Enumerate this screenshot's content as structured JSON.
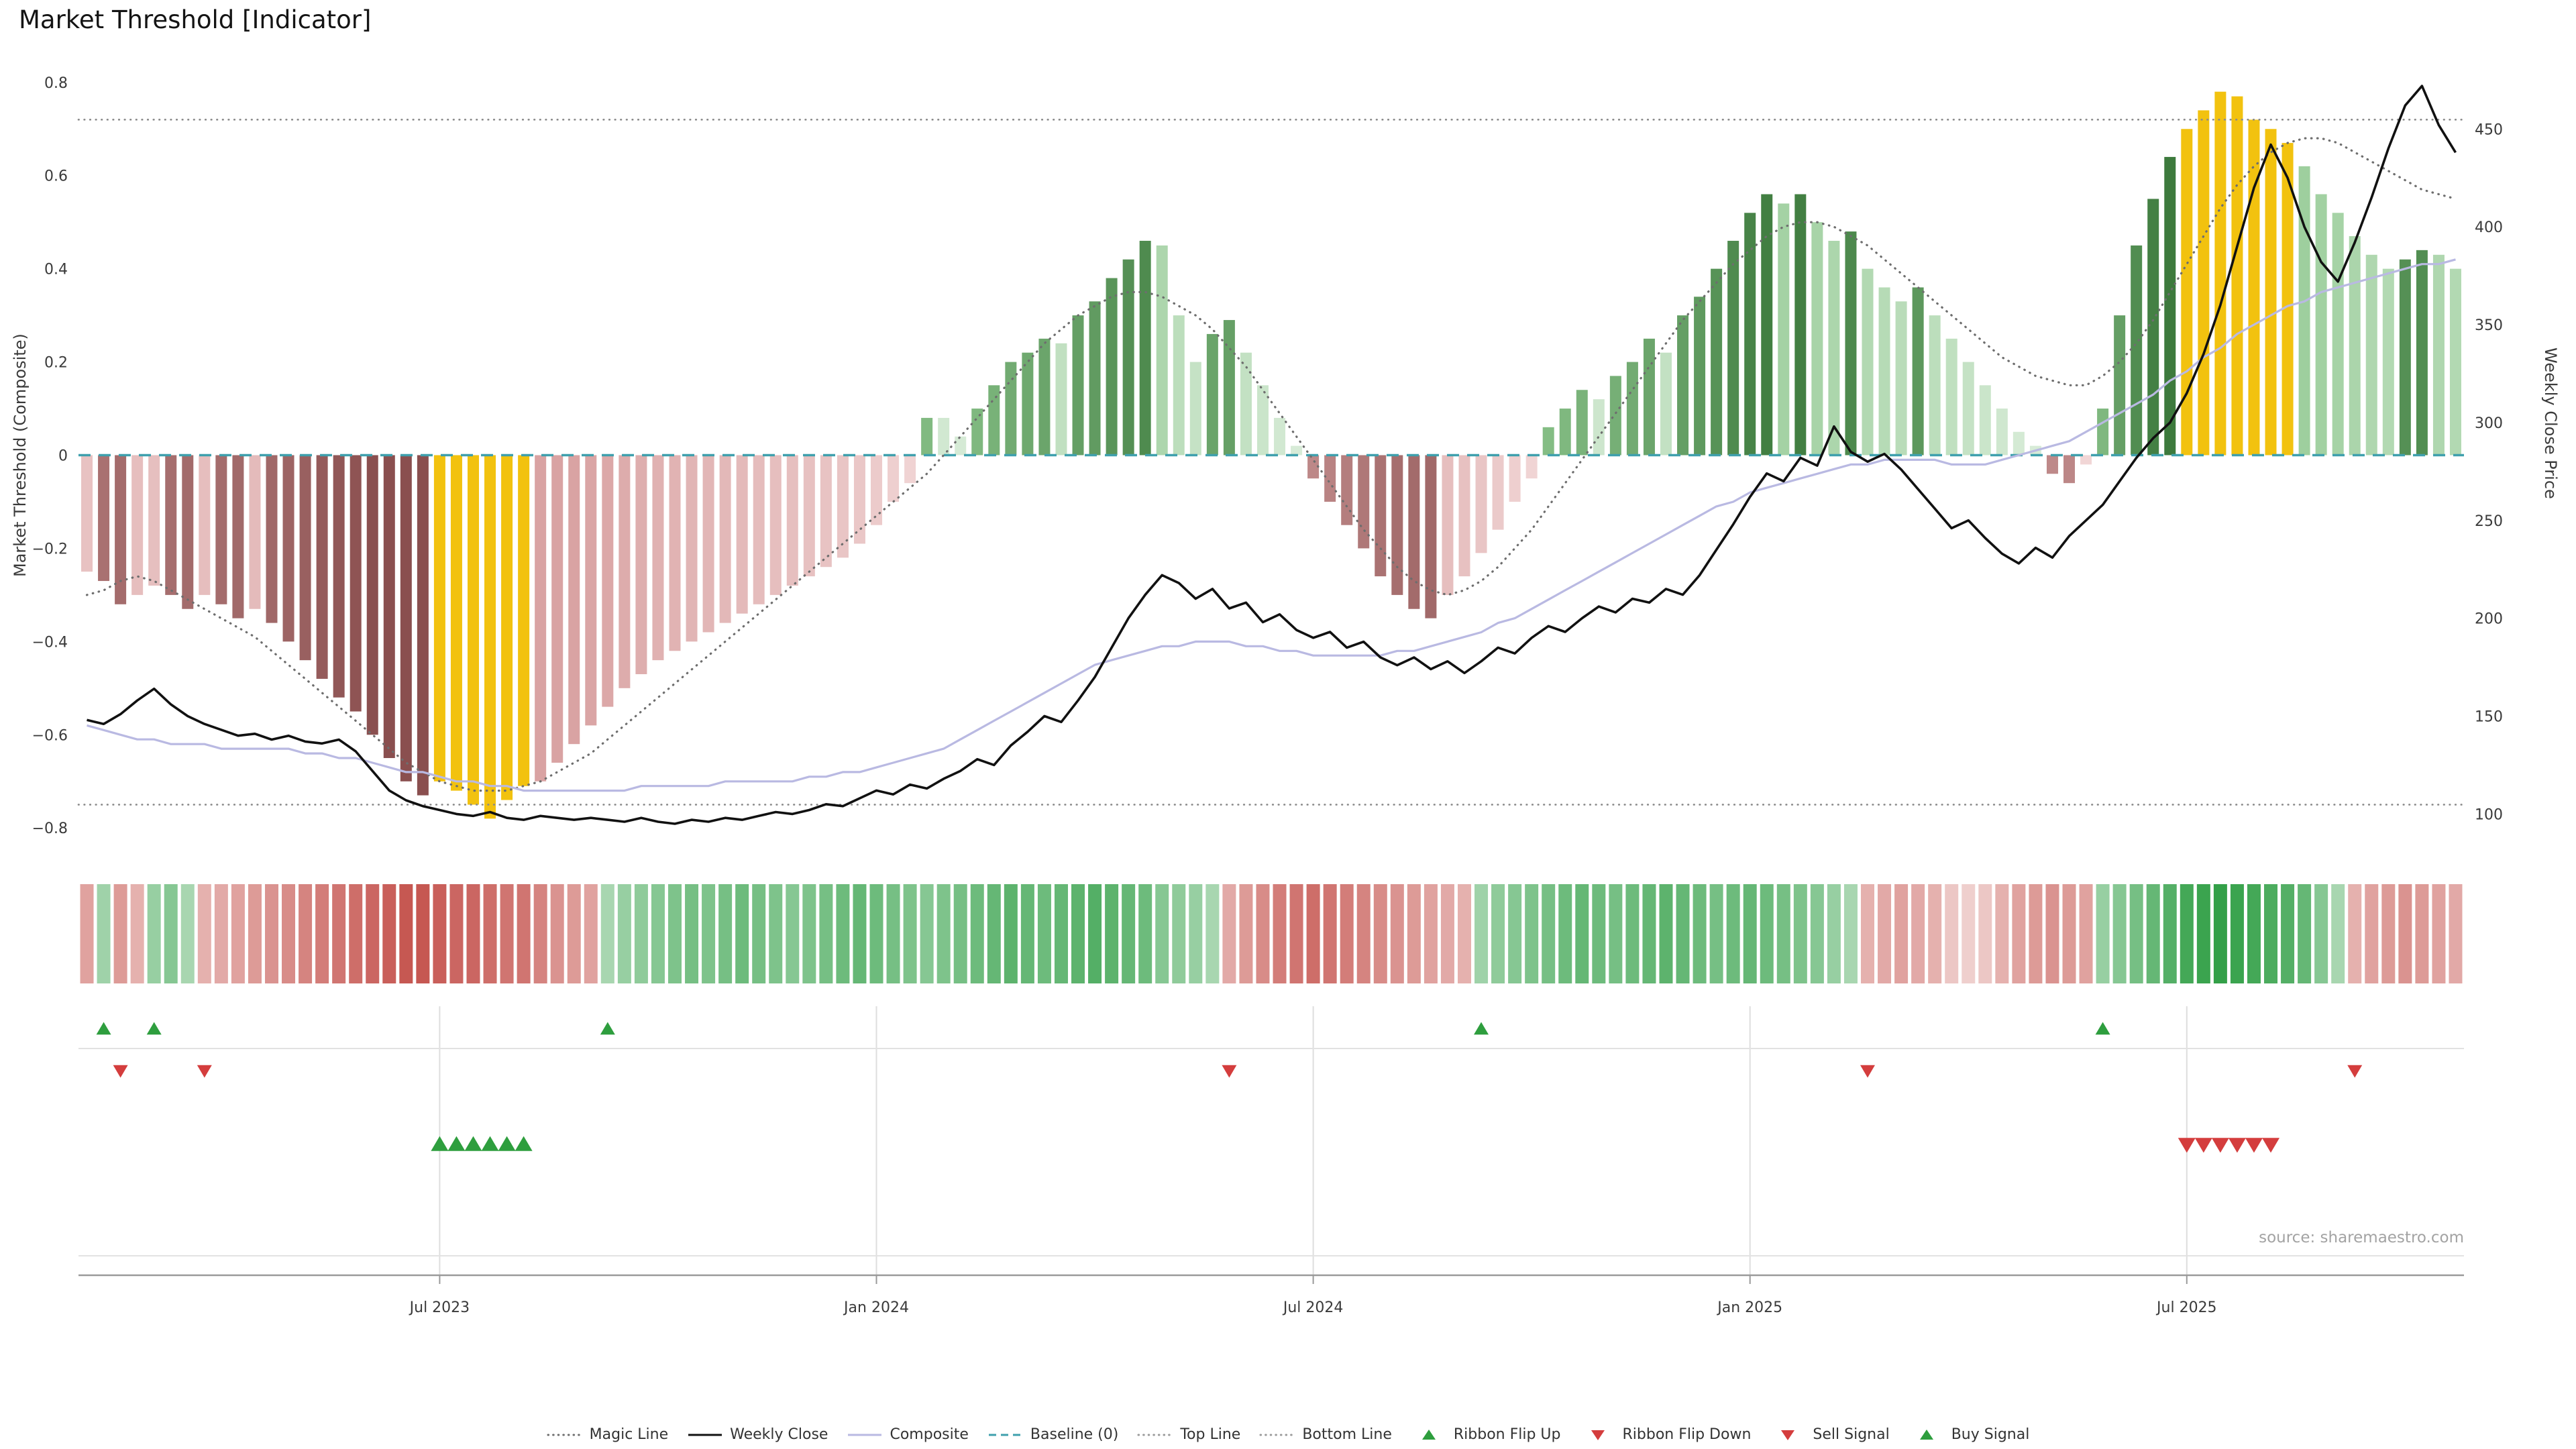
{
  "title": "Market Threshold [Indicator]",
  "source_note": "source: sharemaestro.com",
  "axes": {
    "left_title": "Market Threshold (Composite)",
    "right_title": "Weekly Close Price",
    "left_tick_labels": [
      "0.8",
      "0.6",
      "0.4",
      "0.2",
      "0",
      "−0.2",
      "−0.4",
      "−0.6",
      "−0.8"
    ],
    "left_tick_values": [
      0.8,
      0.6,
      0.4,
      0.2,
      0,
      -0.2,
      -0.4,
      -0.6,
      -0.8
    ],
    "right_tick_labels": [
      "450",
      "400",
      "350",
      "300",
      "250",
      "200",
      "150",
      "100"
    ],
    "right_tick_values": [
      450,
      400,
      350,
      300,
      250,
      200,
      150,
      100
    ],
    "x_ticks": [
      {
        "label": "Jul 2023",
        "week": 21
      },
      {
        "label": "Jan 2024",
        "week": 47
      },
      {
        "label": "Jul 2024",
        "week": 73
      },
      {
        "label": "Jan 2025",
        "week": 99
      },
      {
        "label": "Jul 2025",
        "week": 125
      }
    ]
  },
  "chart_data": {
    "type": "bar",
    "x_unit": "weekly",
    "n_points": 142,
    "title": "Market Threshold [Indicator]",
    "left_axis_range": [
      -0.8,
      0.8
    ],
    "right_axis_range": [
      100,
      450
    ],
    "grid": "off",
    "legend_position": "bottom-center",
    "reference_lines": {
      "baseline": 0,
      "top_line": 0.72,
      "bottom_line": -0.75
    },
    "series": [
      {
        "name": "Market Threshold",
        "type": "bar",
        "axis": "left",
        "values": [
          -0.25,
          -0.27,
          -0.32,
          -0.3,
          -0.28,
          -0.3,
          -0.33,
          -0.3,
          -0.32,
          -0.35,
          -0.33,
          -0.36,
          -0.4,
          -0.44,
          -0.48,
          -0.52,
          -0.55,
          -0.6,
          -0.65,
          -0.7,
          -0.73,
          -0.7,
          -0.72,
          -0.75,
          -0.78,
          -0.74,
          -0.71,
          -0.7,
          -0.66,
          -0.62,
          -0.58,
          -0.54,
          -0.5,
          -0.47,
          -0.44,
          -0.42,
          -0.4,
          -0.38,
          -0.36,
          -0.34,
          -0.32,
          -0.3,
          -0.28,
          -0.26,
          -0.24,
          -0.22,
          -0.19,
          -0.15,
          -0.1,
          -0.06,
          0.08,
          0.08,
          0.04,
          0.1,
          0.15,
          0.2,
          0.22,
          0.25,
          0.24,
          0.3,
          0.33,
          0.38,
          0.42,
          0.46,
          0.45,
          0.3,
          0.2,
          0.26,
          0.29,
          0.22,
          0.15,
          0.08,
          0.02,
          -0.05,
          -0.1,
          -0.15,
          -0.2,
          -0.26,
          -0.3,
          -0.33,
          -0.35,
          -0.3,
          -0.26,
          -0.21,
          -0.16,
          -0.1,
          -0.05,
          0.06,
          0.1,
          0.14,
          0.12,
          0.17,
          0.2,
          0.25,
          0.22,
          0.3,
          0.34,
          0.4,
          0.46,
          0.52,
          0.56,
          0.54,
          0.56,
          0.5,
          0.46,
          0.48,
          0.4,
          0.36,
          0.33,
          0.36,
          0.3,
          0.25,
          0.2,
          0.15,
          0.1,
          0.05,
          0.02,
          -0.04,
          -0.06,
          -0.02,
          0.1,
          0.3,
          0.45,
          0.55,
          0.64,
          0.7,
          0.74,
          0.78,
          0.77,
          0.72,
          0.7,
          0.67,
          0.62,
          0.56,
          0.52,
          0.47,
          0.43,
          0.4,
          0.42,
          0.44,
          0.43,
          0.4
        ]
      },
      {
        "name": "Weekly Close",
        "type": "line",
        "axis": "right",
        "values": [
          148,
          146,
          151,
          158,
          164,
          156,
          150,
          146,
          143,
          140,
          141,
          138,
          140,
          137,
          136,
          138,
          132,
          122,
          112,
          107,
          104,
          102,
          100,
          99,
          101,
          98,
          97,
          99,
          98,
          97,
          98,
          97,
          96,
          98,
          96,
          95,
          97,
          96,
          98,
          97,
          99,
          101,
          100,
          102,
          105,
          104,
          108,
          112,
          110,
          115,
          113,
          118,
          122,
          128,
          125,
          135,
          142,
          150,
          147,
          158,
          170,
          185,
          200,
          212,
          222,
          218,
          210,
          215,
          205,
          208,
          198,
          202,
          194,
          190,
          193,
          185,
          188,
          180,
          176,
          180,
          174,
          178,
          172,
          178,
          185,
          182,
          190,
          196,
          193,
          200,
          206,
          203,
          210,
          208,
          215,
          212,
          222,
          235,
          248,
          262,
          274,
          270,
          282,
          278,
          298,
          285,
          280,
          284,
          276,
          266,
          256,
          246,
          250,
          241,
          233,
          228,
          236,
          231,
          242,
          250,
          258,
          270,
          282,
          292,
          300,
          315,
          335,
          360,
          390,
          420,
          442,
          425,
          400,
          382,
          372,
          392,
          415,
          440,
          462,
          472,
          452,
          438
        ]
      },
      {
        "name": "Composite",
        "type": "line",
        "axis": "left",
        "values": [
          -0.58,
          -0.59,
          -0.6,
          -0.61,
          -0.61,
          -0.62,
          -0.62,
          -0.62,
          -0.63,
          -0.63,
          -0.63,
          -0.63,
          -0.63,
          -0.64,
          -0.64,
          -0.65,
          -0.65,
          -0.66,
          -0.67,
          -0.68,
          -0.68,
          -0.69,
          -0.7,
          -0.7,
          -0.71,
          -0.71,
          -0.72,
          -0.72,
          -0.72,
          -0.72,
          -0.72,
          -0.72,
          -0.72,
          -0.71,
          -0.71,
          -0.71,
          -0.71,
          -0.71,
          -0.7,
          -0.7,
          -0.7,
          -0.7,
          -0.7,
          -0.69,
          -0.69,
          -0.68,
          -0.68,
          -0.67,
          -0.66,
          -0.65,
          -0.64,
          -0.63,
          -0.61,
          -0.59,
          -0.57,
          -0.55,
          -0.53,
          -0.51,
          -0.49,
          -0.47,
          -0.45,
          -0.44,
          -0.43,
          -0.42,
          -0.41,
          -0.41,
          -0.4,
          -0.4,
          -0.4,
          -0.41,
          -0.41,
          -0.42,
          -0.42,
          -0.43,
          -0.43,
          -0.43,
          -0.43,
          -0.43,
          -0.42,
          -0.42,
          -0.41,
          -0.4,
          -0.39,
          -0.38,
          -0.36,
          -0.35,
          -0.33,
          -0.31,
          -0.29,
          -0.27,
          -0.25,
          -0.23,
          -0.21,
          -0.19,
          -0.17,
          -0.15,
          -0.13,
          -0.11,
          -0.1,
          -0.08,
          -0.07,
          -0.06,
          -0.05,
          -0.04,
          -0.03,
          -0.02,
          -0.02,
          -0.01,
          -0.01,
          -0.01,
          -0.01,
          -0.02,
          -0.02,
          -0.02,
          -0.01,
          0.0,
          0.01,
          0.02,
          0.03,
          0.05,
          0.07,
          0.09,
          0.11,
          0.13,
          0.16,
          0.18,
          0.21,
          0.23,
          0.26,
          0.28,
          0.3,
          0.32,
          0.33,
          0.35,
          0.36,
          0.37,
          0.38,
          0.39,
          0.4,
          0.41,
          0.41,
          0.42
        ]
      },
      {
        "name": "Magic Line",
        "type": "line-dotted",
        "axis": "left",
        "values": [
          -0.3,
          -0.29,
          -0.27,
          -0.26,
          -0.27,
          -0.29,
          -0.31,
          -0.33,
          -0.35,
          -0.37,
          -0.39,
          -0.42,
          -0.45,
          -0.48,
          -0.51,
          -0.54,
          -0.57,
          -0.6,
          -0.63,
          -0.66,
          -0.68,
          -0.7,
          -0.71,
          -0.72,
          -0.72,
          -0.72,
          -0.71,
          -0.7,
          -0.68,
          -0.66,
          -0.64,
          -0.61,
          -0.58,
          -0.55,
          -0.52,
          -0.49,
          -0.46,
          -0.43,
          -0.4,
          -0.37,
          -0.34,
          -0.31,
          -0.28,
          -0.25,
          -0.22,
          -0.19,
          -0.16,
          -0.13,
          -0.1,
          -0.07,
          -0.04,
          0.0,
          0.04,
          0.08,
          0.12,
          0.16,
          0.2,
          0.24,
          0.27,
          0.3,
          0.32,
          0.34,
          0.35,
          0.35,
          0.34,
          0.32,
          0.3,
          0.27,
          0.23,
          0.19,
          0.14,
          0.09,
          0.04,
          -0.01,
          -0.06,
          -0.11,
          -0.16,
          -0.2,
          -0.24,
          -0.27,
          -0.29,
          -0.3,
          -0.29,
          -0.27,
          -0.24,
          -0.2,
          -0.16,
          -0.11,
          -0.06,
          -0.01,
          0.04,
          0.09,
          0.14,
          0.19,
          0.24,
          0.29,
          0.33,
          0.37,
          0.41,
          0.44,
          0.47,
          0.49,
          0.5,
          0.5,
          0.49,
          0.47,
          0.45,
          0.42,
          0.39,
          0.36,
          0.33,
          0.3,
          0.27,
          0.24,
          0.21,
          0.19,
          0.17,
          0.16,
          0.15,
          0.15,
          0.17,
          0.2,
          0.24,
          0.29,
          0.35,
          0.41,
          0.47,
          0.53,
          0.58,
          0.62,
          0.65,
          0.67,
          0.68,
          0.68,
          0.67,
          0.65,
          0.63,
          0.61,
          0.59,
          0.57,
          0.56,
          0.55
        ]
      }
    ],
    "ribbon_values": [
      -0.4,
      0.35,
      -0.45,
      -0.3,
      0.4,
      0.5,
      0.3,
      -0.3,
      -0.35,
      -0.4,
      -0.45,
      -0.5,
      -0.55,
      -0.6,
      -0.65,
      -0.7,
      -0.75,
      -0.8,
      -0.85,
      -0.9,
      -0.9,
      -0.85,
      -0.8,
      -0.8,
      -0.75,
      -0.7,
      -0.7,
      -0.6,
      -0.5,
      -0.45,
      -0.4,
      0.3,
      0.4,
      0.45,
      0.5,
      0.55,
      0.6,
      0.55,
      0.6,
      0.65,
      0.6,
      0.55,
      0.5,
      0.55,
      0.6,
      0.65,
      0.7,
      0.65,
      0.6,
      0.55,
      0.5,
      0.55,
      0.6,
      0.65,
      0.7,
      0.75,
      0.7,
      0.65,
      0.7,
      0.75,
      0.8,
      0.75,
      0.7,
      0.65,
      0.5,
      0.45,
      0.4,
      0.3,
      -0.35,
      -0.45,
      -0.55,
      -0.65,
      -0.7,
      -0.75,
      -0.7,
      -0.65,
      -0.6,
      -0.55,
      -0.5,
      -0.45,
      -0.4,
      -0.35,
      -0.3,
      0.35,
      0.45,
      0.5,
      0.55,
      0.6,
      0.65,
      0.7,
      0.65,
      0.6,
      0.65,
      0.7,
      0.75,
      0.7,
      0.65,
      0.6,
      0.65,
      0.7,
      0.65,
      0.6,
      0.55,
      0.5,
      0.4,
      0.3,
      -0.3,
      -0.35,
      -0.4,
      -0.35,
      -0.3,
      -0.15,
      -0.1,
      -0.15,
      -0.3,
      -0.4,
      -0.45,
      -0.5,
      -0.45,
      -0.4,
      0.4,
      0.5,
      0.6,
      0.7,
      0.8,
      0.9,
      0.95,
      1.0,
      0.95,
      0.9,
      0.85,
      0.8,
      0.7,
      0.5,
      0.3,
      -0.3,
      -0.4,
      -0.45,
      -0.5,
      -0.45,
      -0.4,
      -0.35
    ],
    "extreme_zones": {
      "oversold_weeks": [
        21,
        26
      ],
      "overbought_weeks": [
        125,
        131
      ]
    },
    "signals": {
      "ribbon_flip_up_weeks": [
        1,
        4,
        31,
        83,
        120
      ],
      "ribbon_flip_down_weeks": [
        2,
        7,
        68,
        106,
        135
      ],
      "buy_signal_weeks": [
        21,
        22,
        23,
        24,
        25,
        26
      ],
      "sell_signal_weeks": [
        125,
        126,
        127,
        128,
        129,
        130
      ]
    }
  },
  "colors": {
    "bar_green_rising_lo": "#8cc48c",
    "bar_green_rising_hi": "#3d7a3d",
    "bar_green_falling_lo": "#d9ecd9",
    "bar_green_falling_hi": "#9ecf9e",
    "bar_red_falling_lo": "#c28d8d",
    "bar_red_falling_hi": "#8a4f4f",
    "bar_red_rising_lo": "#f2d8d8",
    "bar_red_rising_hi": "#d9a3a3",
    "bar_gold": "#f2c20f",
    "weekly_close": "#111111",
    "composite": "#b9b9e2",
    "baseline": "#3fa0ad",
    "magic_line": "#6e6e6e",
    "ref_line": "#8a8a8a",
    "ribbon_green": "#2f9e44",
    "ribbon_red": "#c0453f",
    "signal_green": "#2e9e3e",
    "signal_red": "#d43d3d"
  },
  "legend": {
    "items": [
      {
        "label": "Magic Line",
        "swatch": "dotted-line",
        "color": "#6e6e6e"
      },
      {
        "label": "Weekly Close",
        "swatch": "solid-line",
        "color": "#111111"
      },
      {
        "label": "Composite",
        "swatch": "solid-line",
        "color": "#b9b9e2"
      },
      {
        "label": "Baseline (0)",
        "swatch": "dashed-line",
        "color": "#3fa0ad"
      },
      {
        "label": "Top Line",
        "swatch": "dotted-line",
        "color": "#9a9a9a"
      },
      {
        "label": "Bottom Line",
        "swatch": "dotted-line",
        "color": "#9a9a9a"
      },
      {
        "label": "Ribbon Flip Up",
        "swatch": "triangle-up",
        "color": "#2e9e3e"
      },
      {
        "label": "Ribbon Flip Down",
        "swatch": "triangle-down",
        "color": "#d43d3d"
      },
      {
        "label": "Sell Signal",
        "swatch": "triangle-down",
        "color": "#d43d3d"
      },
      {
        "label": "Buy Signal",
        "swatch": "triangle-up",
        "color": "#2e9e3e"
      }
    ]
  }
}
